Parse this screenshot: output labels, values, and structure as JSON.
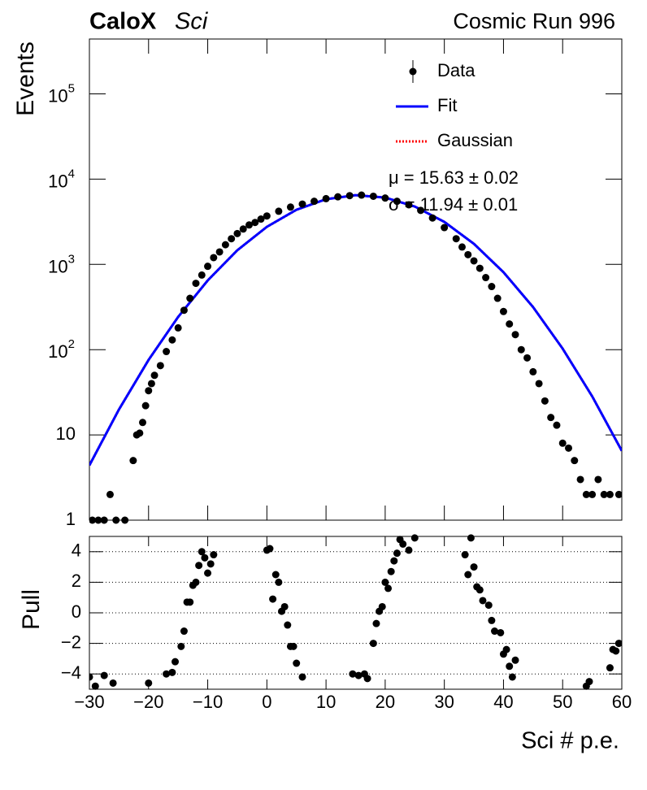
{
  "chart_data": [
    {
      "type": "scatter",
      "title": "CaloX",
      "subtitle": "Sci",
      "annotation": "Cosmic Run 996",
      "ylabel": "Events",
      "log_y": true,
      "xlim": [
        -30,
        60
      ],
      "ylim": [
        1,
        440000
      ],
      "yticks": [
        1,
        10,
        {
          "value": 100,
          "label": "10",
          "exponent": "2"
        },
        {
          "value": 1000,
          "label": "10",
          "exponent": "3"
        },
        {
          "value": 10000,
          "label": "10",
          "exponent": "4"
        },
        {
          "value": 100000,
          "label": "10",
          "exponent": "5"
        }
      ],
      "annotations": [
        "μ = 15.63 ± 0.02",
        "σ = 11.94 ± 0.01"
      ],
      "series": [
        {
          "name": "Data",
          "color": "#000000",
          "style": "points",
          "x": [
            -29.5,
            -28.5,
            -27.5,
            -26.5,
            -25.5,
            -24,
            -22.6,
            -22,
            -21.5,
            -21,
            -20.5,
            -20,
            -19.5,
            -19,
            -18,
            -17,
            -16,
            -15,
            -14,
            -13,
            -12,
            -11,
            -10,
            -9,
            -8,
            -7,
            -6,
            -5,
            -4,
            -3,
            -2,
            -1,
            0,
            2,
            4,
            6,
            8,
            10,
            12,
            14,
            16,
            18,
            20,
            22,
            24,
            26,
            28,
            30,
            32,
            33,
            34,
            35,
            36,
            37,
            38,
            39,
            40,
            41,
            42,
            43,
            44,
            45,
            46,
            47,
            48,
            49,
            50,
            51,
            52,
            53,
            54,
            55,
            56,
            57,
            58,
            59.5
          ],
          "values": [
            1,
            1,
            1,
            2,
            1,
            1,
            5,
            10,
            10.5,
            14,
            22,
            33,
            40,
            50,
            65,
            95,
            130,
            180,
            290,
            400,
            600,
            750,
            950,
            1200,
            1400,
            1700,
            2000,
            2300,
            2600,
            2900,
            3100,
            3400,
            3700,
            4200,
            4700,
            5100,
            5500,
            5900,
            6200,
            6400,
            6500,
            6300,
            6000,
            5500,
            5000,
            4300,
            3500,
            2700,
            2000,
            1600,
            1300,
            1100,
            900,
            700,
            550,
            400,
            280,
            200,
            150,
            100,
            80,
            55,
            40,
            25,
            16,
            13,
            8,
            7,
            5,
            3,
            2,
            2,
            3,
            2,
            2,
            2
          ]
        },
        {
          "name": "Fit",
          "color": "#0000ff",
          "style": "solid",
          "x": [
            -30,
            -25,
            -20,
            -15,
            -10,
            -5,
            0,
            5,
            10,
            15,
            20,
            25,
            30,
            35,
            40,
            45,
            50,
            55,
            60
          ],
          "values": [
            4.4,
            19.9,
            75.8,
            242,
            649,
            1461,
            2759,
            4374,
            5816,
            6491,
            6079,
            4777,
            3152,
            1743,
            810,
            316,
            103,
            28.3,
            6.5
          ]
        },
        {
          "name": "Gaussian",
          "color": "#ff0000",
          "style": "dotted",
          "x": [
            -30,
            -25,
            -20,
            -15,
            -10,
            -5,
            0,
            5,
            10,
            15,
            20,
            25,
            30,
            35,
            40,
            45,
            50,
            55,
            60
          ],
          "values": [
            4.4,
            19.9,
            75.8,
            242,
            649,
            1461,
            2759,
            4374,
            5816,
            6491,
            6079,
            4777,
            3152,
            1743,
            810,
            316,
            103,
            28.3,
            6.5
          ]
        }
      ]
    },
    {
      "type": "scatter",
      "ylabel": "Pull",
      "xlabel": "Sci # p.e.",
      "color": "#000000",
      "grid": true,
      "xlim": [
        -30,
        60
      ],
      "ylim": [
        -5,
        5
      ],
      "xticks": [
        {
          "value": -30,
          "label": "−30"
        },
        {
          "value": -20,
          "label": "−20"
        },
        {
          "value": -10,
          "label": "−10"
        },
        0,
        10,
        20,
        30,
        40,
        50,
        60
      ],
      "yticks": [
        {
          "value": -4,
          "label": "−4"
        },
        {
          "value": -2,
          "label": "−2"
        },
        0,
        2,
        4
      ],
      "x": [
        -30,
        -29,
        -27.5,
        -26,
        -20,
        -17,
        -16,
        -15.5,
        -14.5,
        -14,
        -13.5,
        -13,
        -12.5,
        -12,
        -11.5,
        -11,
        -10.5,
        -10,
        -9.5,
        -9,
        0,
        0.5,
        1,
        1.5,
        2,
        2.5,
        3,
        3.5,
        4,
        4.5,
        5,
        6,
        14.5,
        15.5,
        16.5,
        17,
        18,
        18.5,
        19,
        19.5,
        20,
        20.5,
        21,
        21.5,
        22,
        22.5,
        23,
        24,
        25,
        33.5,
        34,
        34.5,
        35,
        35.5,
        36,
        36.5,
        37.5,
        38,
        38.5,
        39.5,
        40,
        40.5,
        41,
        41.5,
        42,
        54,
        54.5,
        58,
        58.5,
        59,
        59.5
      ],
      "values": [
        -4.2,
        -4.8,
        -4.1,
        -4.6,
        -4.6,
        -4,
        -3.9,
        -3.2,
        -2.2,
        -1.2,
        0.7,
        0.7,
        1.8,
        2.0,
        3.1,
        4,
        3.6,
        2.6,
        3.2,
        3.8,
        4.1,
        4.2,
        0.9,
        2.5,
        2.0,
        0.1,
        0.4,
        -0.8,
        -2.2,
        -2.2,
        -3.3,
        -4.2,
        -4,
        -4.1,
        -4,
        -4.3,
        -2,
        -0.7,
        0.1,
        0.4,
        2.0,
        1.6,
        2.7,
        3.4,
        3.9,
        4.8,
        4.5,
        4.1,
        4.9,
        3.8,
        2.5,
        4.9,
        3.0,
        1.7,
        1.5,
        0.8,
        0.5,
        -0.5,
        -1.2,
        -1.3,
        -2.7,
        -2.4,
        -3.5,
        -4.2,
        -3.1,
        -4.8,
        -4.5,
        -3.6,
        -2.4,
        -2.5,
        -2.0
      ]
    }
  ]
}
